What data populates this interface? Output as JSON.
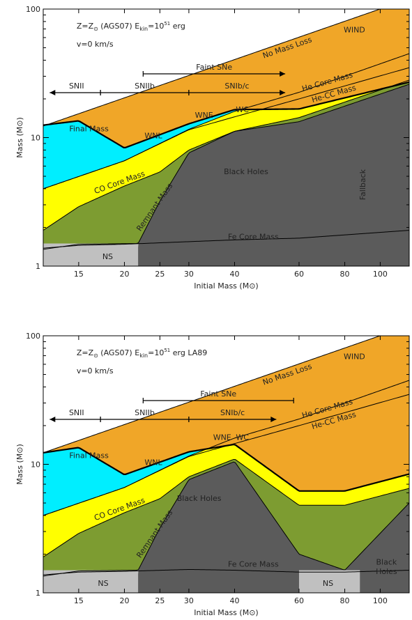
{
  "chart_data": [
    {
      "type": "area",
      "header": {
        "line1_prefix": "Z=Z",
        "line1_sub": "⊙",
        "line1_mid": " (AGS07)   E",
        "ekin_sub": "kin",
        "ekin_eq": "=10",
        "ekin_sup": "51",
        "ekin_unit": " erg",
        "tag": "",
        "line2": "v=0 km/s"
      },
      "xlabel": "Initial Mass (M⊙)",
      "ylabel": "Mass (M⊙)",
      "xlim": [
        12,
        120
      ],
      "ylim": [
        1,
        100
      ],
      "xscale": "log",
      "yscale": "log",
      "x_ticks": [
        15,
        20,
        25,
        30,
        40,
        60,
        80,
        100
      ],
      "y_ticks": [
        1,
        10,
        100
      ],
      "colors": {
        "wind": "#f0a628",
        "he_envelope": "#ffff00",
        "co_core": "#ffff00",
        "he_cc": "#00eeff",
        "remnant": "#7d9c31",
        "black_holes": "#5b5b5b",
        "ns": "#c0c0c0"
      },
      "region_labels": [
        "WIND",
        "Black Holes",
        "NS",
        "Fallback"
      ],
      "line_labels": [
        "No Mass Loss",
        "Final Mass",
        "He Core Mass",
        "He-CC Mass",
        "CO Core Mass",
        "Remnant Mass",
        "Fe Core Mass",
        "WNL",
        "WNE",
        "WC"
      ],
      "ranges": [
        {
          "label": "SNII",
          "from": 12.5,
          "to": 17.2,
          "direction": "left"
        },
        {
          "label": "SNIIb",
          "from": 17.2,
          "to": 30,
          "direction": "none"
        },
        {
          "label": "SNIb/c",
          "from": 30,
          "to": 55,
          "direction": "right"
        },
        {
          "label": "Faint SNe",
          "from": 22.5,
          "to": 55,
          "direction": "right"
        }
      ],
      "series": [
        {
          "name": "No Mass Loss",
          "x": [
            12,
            120
          ],
          "y": [
            12.3,
            120
          ]
        },
        {
          "name": "Final Mass",
          "x": [
            12,
            15,
            20,
            30,
            40,
            60,
            120
          ],
          "y": [
            12.5,
            13.5,
            8.3,
            12.8,
            16.5,
            16.7,
            27
          ]
        },
        {
          "name": "He Core Mass",
          "x": [
            12,
            20,
            30,
            40,
            60,
            120
          ],
          "y": [
            4.0,
            6.6,
            11.6,
            16.0,
            22.5,
            45
          ]
        },
        {
          "name": "He-CC Mass",
          "x": [
            12,
            20,
            30,
            40,
            60,
            120
          ],
          "y": [
            4.0,
            6.6,
            11.5,
            14.5,
            20,
            35
          ]
        },
        {
          "name": "CO Core Mass",
          "x": [
            12,
            15,
            20,
            25,
            30,
            40,
            60,
            120
          ],
          "y": [
            1.9,
            2.9,
            4.2,
            5.4,
            8.0,
            11.2,
            14.3,
            28
          ]
        },
        {
          "name": "Remnant Mass",
          "x": [
            12,
            15,
            21.8,
            25,
            30,
            40,
            60,
            120
          ],
          "y": [
            1.35,
            1.48,
            1.5,
            3.2,
            7.6,
            11.2,
            13.3,
            26
          ]
        },
        {
          "name": "Fe Core Mass",
          "x": [
            12,
            15,
            20,
            30,
            40,
            60,
            120
          ],
          "y": [
            1.38,
            1.45,
            1.48,
            1.55,
            1.6,
            1.65,
            1.9
          ]
        },
        {
          "name": "NS",
          "x": [
            12,
            21.8
          ],
          "y": [
            1.35,
            1.5
          ]
        }
      ],
      "bh_start": 21.8,
      "ns_intervals": [
        [
          12,
          21.8
        ]
      ],
      "final_mass_regime": [
        12,
        40
      ],
      "labels_pos_note": ""
    },
    {
      "type": "area",
      "header": {
        "line1_prefix": "Z=Z",
        "line1_sub": "⊙",
        "line1_mid": " (AGS07)   E",
        "ekin_sub": "kin",
        "ekin_eq": "=10",
        "ekin_sup": "51",
        "ekin_unit": " erg",
        "tag": "LA89",
        "line2": "v=0 km/s"
      },
      "xlabel": "Initial Mass (M⊙)",
      "ylabel": "Mass (M⊙)",
      "xlim": [
        12,
        120
      ],
      "ylim": [
        1,
        100
      ],
      "xscale": "log",
      "yscale": "log",
      "x_ticks": [
        15,
        20,
        25,
        30,
        40,
        60,
        80,
        100
      ],
      "y_ticks": [
        1,
        10,
        100
      ],
      "colors": {
        "wind": "#f0a628",
        "he_envelope": "#ffff00",
        "co_core": "#ffff00",
        "he_cc": "#00eeff",
        "remnant": "#7d9c31",
        "black_holes": "#5b5b5b",
        "ns": "#c0c0c0"
      },
      "region_labels": [
        "WIND",
        "Black Holes",
        "NS",
        "NS",
        "Black Holes"
      ],
      "line_labels": [
        "No Mass Loss",
        "Final Mass",
        "He Core Mass",
        "He-CC Mass",
        "CO Core Mass",
        "Remnant Mass",
        "Fe Core Mass",
        "WNL",
        "WNE",
        "WC"
      ],
      "ranges": [
        {
          "label": "SNII",
          "from": 12.5,
          "to": 17.2,
          "direction": "left"
        },
        {
          "label": "SNIIb",
          "from": 17.2,
          "to": 30,
          "direction": "none"
        },
        {
          "label": "SNIb/c",
          "from": 30,
          "to": 52,
          "direction": "right"
        },
        {
          "label": "Faint SNe",
          "from": 22.5,
          "to": 58,
          "direction": "none"
        }
      ],
      "series": [
        {
          "name": "No Mass Loss",
          "x": [
            12,
            120
          ],
          "y": [
            12.3,
            120
          ]
        },
        {
          "name": "Final Mass",
          "x": [
            12,
            15,
            20,
            30,
            40,
            60,
            80,
            120
          ],
          "y": [
            12.3,
            13.5,
            8.3,
            12.5,
            14.3,
            6.2,
            6.2,
            8.4
          ]
        },
        {
          "name": "He Core Mass",
          "x": [
            12,
            20,
            30,
            40,
            60,
            120
          ],
          "y": [
            4.0,
            6.6,
            11.6,
            16.0,
            22.5,
            45
          ]
        },
        {
          "name": "He-CC Mass",
          "x": [
            12,
            20,
            30,
            40,
            60,
            120
          ],
          "y": [
            4.0,
            6.6,
            11.5,
            14.5,
            20,
            35
          ]
        },
        {
          "name": "CO Core Mass",
          "x": [
            12,
            15,
            20,
            25,
            30,
            40,
            60,
            80,
            120
          ],
          "y": [
            1.9,
            2.9,
            4.2,
            5.4,
            8.0,
            11.0,
            4.8,
            4.8,
            6.5
          ]
        },
        {
          "name": "Remnant Mass",
          "x": [
            12,
            15,
            21.8,
            25,
            30,
            40,
            60,
            80,
            120
          ],
          "y": [
            1.35,
            1.48,
            1.5,
            3.2,
            7.6,
            10.5,
            2.0,
            1.5,
            5.0
          ]
        },
        {
          "name": "Fe Core Mass",
          "x": [
            12,
            15,
            20,
            30,
            40,
            60,
            80,
            120
          ],
          "y": [
            1.38,
            1.45,
            1.47,
            1.52,
            1.5,
            1.45,
            1.45,
            1.5
          ]
        }
      ],
      "bh_start": 21.8,
      "ns_intervals": [
        [
          12,
          21.8
        ],
        [
          60,
          88
        ]
      ],
      "final_mass_regime": [
        12,
        40
      ],
      "labels_pos_note": ""
    }
  ]
}
